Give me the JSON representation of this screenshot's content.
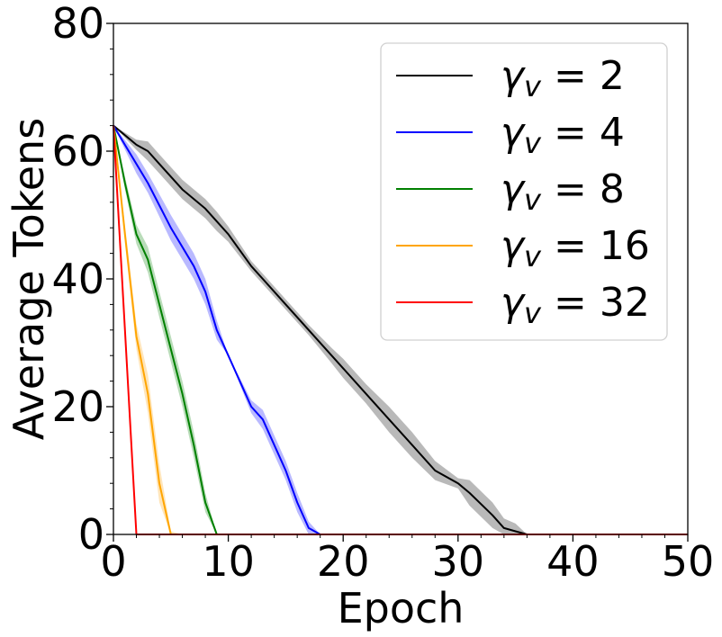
{
  "chart_data": {
    "type": "line",
    "title": "",
    "xlabel": "Epoch",
    "ylabel": "Average Tokens",
    "xlim": [
      0,
      50
    ],
    "ylim": [
      0,
      80
    ],
    "xticks": [
      "0",
      "10",
      "20",
      "30",
      "40",
      "50"
    ],
    "yticks": [
      "0",
      "20",
      "40",
      "60",
      "80"
    ],
    "grid": false,
    "legend_position": "top-right",
    "series": [
      {
        "name": "γv = 2",
        "legend_symbol": "γ",
        "legend_sub": "v",
        "legend_rest": " = 2",
        "color": "#000000",
        "band_color": "#808080",
        "x": [
          0,
          2,
          3,
          4,
          6,
          8,
          9,
          10,
          12,
          13,
          15,
          17,
          19,
          20,
          22,
          24,
          26,
          28,
          30,
          31,
          33,
          34,
          35,
          36,
          40,
          50
        ],
        "y": [
          64,
          61,
          60,
          58,
          54,
          51,
          49,
          47,
          42,
          40,
          36,
          32,
          28,
          26,
          22,
          18,
          14,
          10,
          8,
          6.5,
          3,
          1,
          0.5,
          0,
          0,
          0
        ],
        "band": [
          0,
          0.8,
          1.5,
          1.5,
          1.5,
          1.5,
          1.5,
          1.2,
          0.8,
          0.8,
          0.8,
          0.8,
          1.2,
          1.5,
          1.5,
          2,
          2,
          1.5,
          0.8,
          2,
          2,
          1.5,
          1.2,
          0,
          0,
          0
        ]
      },
      {
        "name": "γv = 4",
        "legend_symbol": "γ",
        "legend_sub": "v",
        "legend_rest": " = 4",
        "color": "#0000ff",
        "band_color": "#8080ff",
        "x": [
          0,
          2,
          3,
          5,
          7,
          8,
          9,
          10,
          12,
          13,
          15,
          16,
          17,
          18,
          20,
          50
        ],
        "y": [
          64,
          58,
          55,
          48,
          42,
          38,
          32,
          28,
          20,
          18,
          10,
          5,
          1,
          0,
          0,
          0
        ],
        "band": [
          0,
          1.5,
          1.5,
          2,
          2,
          2,
          1.5,
          0,
          1,
          1.5,
          1.5,
          1.5,
          1,
          0,
          0,
          0
        ]
      },
      {
        "name": "γv = 8",
        "legend_symbol": "γ",
        "legend_sub": "v",
        "legend_rest": " = 8",
        "color": "#008000",
        "band_color": "#80c080",
        "x": [
          0,
          1,
          2,
          3,
          4,
          5,
          6,
          7,
          8,
          9,
          10,
          50
        ],
        "y": [
          64,
          55,
          47,
          43,
          36,
          29,
          22,
          14,
          5,
          0,
          0,
          0
        ],
        "band": [
          0,
          1,
          1.5,
          2,
          2,
          2,
          2,
          2,
          1.5,
          0,
          0,
          0
        ]
      },
      {
        "name": "γv = 16",
        "legend_symbol": "γ",
        "legend_sub": "v",
        "legend_rest": " = 16",
        "color": "#ffa500",
        "band_color": "#ffd080",
        "x": [
          0,
          1,
          2,
          3,
          4,
          5,
          6,
          50
        ],
        "y": [
          64,
          47,
          31,
          22,
          8,
          0,
          0,
          0
        ],
        "band": [
          0,
          1.5,
          2,
          3,
          3,
          0.5,
          0,
          0
        ]
      },
      {
        "name": "γv = 32",
        "legend_symbol": "γ",
        "legend_sub": "v",
        "legend_rest": " = 32",
        "color": "#ff0000",
        "band_color": "#ff8080",
        "x": [
          0,
          1,
          2,
          50
        ],
        "y": [
          64,
          32,
          0,
          0
        ],
        "band": [
          0,
          0,
          0,
          0
        ]
      }
    ]
  }
}
